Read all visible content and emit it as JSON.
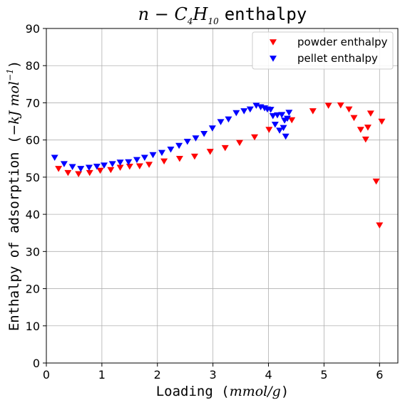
{
  "chart_data": {
    "type": "scatter",
    "title_prefix": "n − C",
    "title_sub1": "4",
    "title_mid": "H",
    "title_sub2": "10",
    "title_suffix": "enthalpy",
    "xlabel_text": "Loading (",
    "xlabel_unit": "mmol/g",
    "xlabel_close": ")",
    "ylabel_text": "Enthalpy of adsorption (",
    "ylabel_unit": "−kJ mol",
    "ylabel_exp": "−1",
    "ylabel_close": ")",
    "xlim": [
      0,
      6.33
    ],
    "ylim": [
      0,
      90
    ],
    "xticks": [
      0,
      1,
      2,
      3,
      4,
      5,
      6
    ],
    "yticks": [
      0,
      10,
      20,
      30,
      40,
      50,
      60,
      70,
      80,
      90
    ],
    "grid": true,
    "legend_position": "top-right",
    "series": [
      {
        "name": "powder enthalpy",
        "color": "#ff0000",
        "marker": "triangle-down",
        "points": [
          [
            0.22,
            52.3
          ],
          [
            0.39,
            51.2
          ],
          [
            0.58,
            50.9
          ],
          [
            0.78,
            51.2
          ],
          [
            0.97,
            51.8
          ],
          [
            1.16,
            52.0
          ],
          [
            1.33,
            52.6
          ],
          [
            1.5,
            52.9
          ],
          [
            1.68,
            53.0
          ],
          [
            1.85,
            53.4
          ],
          [
            2.12,
            54.3
          ],
          [
            2.4,
            55.0
          ],
          [
            2.67,
            55.6
          ],
          [
            2.95,
            56.9
          ],
          [
            3.22,
            57.9
          ],
          [
            3.48,
            59.3
          ],
          [
            3.75,
            60.8
          ],
          [
            4.01,
            62.8
          ],
          [
            4.42,
            65.4
          ],
          [
            4.8,
            67.8
          ],
          [
            5.08,
            69.3
          ],
          [
            5.3,
            69.4
          ],
          [
            5.45,
            68.3
          ],
          [
            5.54,
            66.0
          ],
          [
            5.66,
            62.8
          ],
          [
            5.75,
            60.2
          ],
          [
            5.79,
            63.4
          ],
          [
            5.84,
            67.2
          ],
          [
            5.94,
            48.9
          ],
          [
            6.0,
            37.1
          ],
          [
            6.04,
            65.0
          ]
        ]
      },
      {
        "name": "pellet enthalpy",
        "color": "#0000ff",
        "marker": "triangle-down",
        "points": [
          [
            0.15,
            55.3
          ],
          [
            0.32,
            53.6
          ],
          [
            0.47,
            52.8
          ],
          [
            0.62,
            52.3
          ],
          [
            0.77,
            52.6
          ],
          [
            0.91,
            52.9
          ],
          [
            1.04,
            53.2
          ],
          [
            1.19,
            53.6
          ],
          [
            1.33,
            54.0
          ],
          [
            1.48,
            54.1
          ],
          [
            1.63,
            54.7
          ],
          [
            1.77,
            55.3
          ],
          [
            1.92,
            56.0
          ],
          [
            2.08,
            56.6
          ],
          [
            2.24,
            57.5
          ],
          [
            2.39,
            58.5
          ],
          [
            2.54,
            59.6
          ],
          [
            2.69,
            60.5
          ],
          [
            2.84,
            61.7
          ],
          [
            2.99,
            63.2
          ],
          [
            3.14,
            64.9
          ],
          [
            3.28,
            65.6
          ],
          [
            3.42,
            67.3
          ],
          [
            3.56,
            67.8
          ],
          [
            3.67,
            68.3
          ],
          [
            3.78,
            69.3
          ],
          [
            3.86,
            68.9
          ],
          [
            3.93,
            68.6
          ],
          [
            3.98,
            68.3
          ],
          [
            4.04,
            68.2
          ],
          [
            4.08,
            66.5
          ],
          [
            4.12,
            64.2
          ],
          [
            4.16,
            66.7
          ],
          [
            4.2,
            62.6
          ],
          [
            4.24,
            66.8
          ],
          [
            4.27,
            63.3
          ],
          [
            4.29,
            65.3
          ],
          [
            4.31,
            61.0
          ],
          [
            4.34,
            65.8
          ],
          [
            4.37,
            67.4
          ]
        ]
      }
    ]
  }
}
